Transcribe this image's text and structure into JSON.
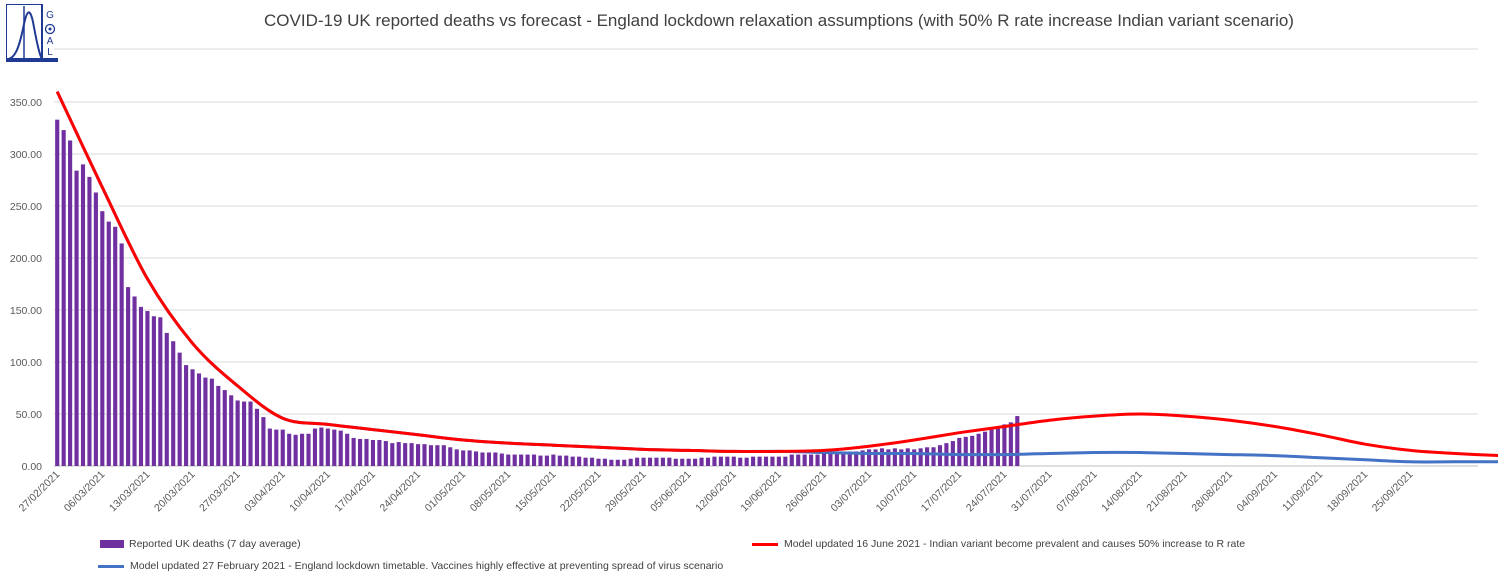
{
  "logo": {
    "text": "GOAL"
  },
  "chart_data": {
    "type": "bar",
    "title": "COVID-19 UK reported deaths vs forecast - England lockdown relaxation assumptions (with 50% R rate increase Indian variant scenario)",
    "xlabel": "",
    "ylabel": "",
    "x_start": "27/02/2021",
    "x_end": "02/10/2021",
    "ylim": [
      0,
      350
    ],
    "yticks": [
      "0.00",
      "50.00",
      "100.00",
      "150.00",
      "200.00",
      "250.00",
      "300.00",
      "350.00"
    ],
    "xticks": [
      "27/02/2021",
      "06/03/2021",
      "13/03/2021",
      "20/03/2021",
      "27/03/2021",
      "03/04/2021",
      "10/04/2021",
      "17/04/2021",
      "24/04/2021",
      "01/05/2021",
      "08/05/2021",
      "15/05/2021",
      "22/05/2021",
      "29/05/2021",
      "05/06/2021",
      "12/06/2021",
      "19/06/2021",
      "26/06/2021",
      "03/07/2021",
      "10/07/2021",
      "17/07/2021",
      "24/07/2021",
      "31/07/2021",
      "07/08/2021",
      "14/08/2021",
      "21/08/2021",
      "28/08/2021",
      "04/09/2021",
      "11/09/2021",
      "18/09/2021",
      "25/09/2021"
    ],
    "grid": true,
    "legend_position": "bottom",
    "series": [
      {
        "name": "Reported UK deaths (7 day average)",
        "kind": "bar",
        "color": "#7030a0",
        "values": [
          333,
          323,
          313,
          284,
          290,
          278,
          263,
          245,
          235,
          230,
          214,
          172,
          163,
          153,
          149,
          144,
          143,
          128,
          120,
          109,
          97,
          93,
          89,
          85,
          84,
          77,
          73,
          68,
          63,
          62,
          62,
          55,
          47,
          36,
          35,
          35,
          31,
          30,
          31,
          31,
          36,
          37,
          36,
          35,
          34,
          31,
          27,
          26,
          26,
          25,
          25,
          24,
          22,
          23,
          22,
          22,
          21,
          21,
          20,
          20,
          20,
          18,
          16,
          15,
          15,
          14,
          13,
          13,
          13,
          12,
          11,
          11,
          11,
          11,
          11,
          10,
          10,
          11,
          10,
          10,
          9,
          9,
          8,
          8,
          7,
          7,
          6,
          6,
          6,
          7,
          8,
          8,
          8,
          8,
          8,
          8,
          7,
          7,
          7,
          7,
          8,
          8,
          9,
          9,
          9,
          9,
          8,
          8,
          9,
          9,
          9,
          9,
          9,
          9,
          11,
          11,
          11,
          11,
          11,
          12,
          12,
          13,
          13,
          14,
          14,
          15,
          16,
          16,
          17,
          16,
          17,
          16,
          17,
          16,
          17,
          18,
          18,
          20,
          22,
          24,
          27,
          28,
          29,
          31,
          33,
          36,
          38,
          40,
          42,
          48
        ]
      },
      {
        "name": "Model updated 16 June 2021 - Indian variant become prevalent and causes 50% increase to R rate",
        "kind": "line",
        "color": "#ff0000",
        "points": [
          [
            0,
            360
          ],
          [
            7,
            268
          ],
          [
            14,
            180
          ],
          [
            21,
            118
          ],
          [
            28,
            77
          ],
          [
            35,
            46
          ],
          [
            42,
            40
          ],
          [
            49,
            35
          ],
          [
            56,
            30
          ],
          [
            63,
            25
          ],
          [
            70,
            22
          ],
          [
            77,
            20
          ],
          [
            84,
            18
          ],
          [
            91,
            16
          ],
          [
            98,
            15
          ],
          [
            105,
            14
          ],
          [
            112,
            14
          ],
          [
            119,
            15
          ],
          [
            126,
            19
          ],
          [
            133,
            25
          ],
          [
            140,
            32
          ],
          [
            147,
            38
          ],
          [
            154,
            44
          ],
          [
            161,
            48
          ],
          [
            168,
            50
          ],
          [
            175,
            48
          ],
          [
            182,
            44
          ],
          [
            189,
            38
          ],
          [
            196,
            30
          ],
          [
            203,
            21
          ],
          [
            210,
            15
          ],
          [
            217,
            12
          ],
          [
            224,
            10
          ],
          [
            231,
            9
          ],
          [
            238,
            8
          ],
          [
            245,
            7
          ],
          [
            252,
            6
          ],
          [
            259,
            6
          ]
        ]
      },
      {
        "name": "Model updated 27 February 2021 - England lockdown timetable. Vaccines highly effective at preventing spread of virus scenario",
        "kind": "line",
        "color": "#4472c4",
        "points": [
          [
            0,
            360
          ],
          [
            7,
            268
          ],
          [
            14,
            180
          ],
          [
            21,
            118
          ],
          [
            28,
            77
          ],
          [
            35,
            46
          ],
          [
            42,
            40
          ],
          [
            49,
            35
          ],
          [
            56,
            30
          ],
          [
            63,
            25
          ],
          [
            70,
            22
          ],
          [
            77,
            20
          ],
          [
            84,
            18
          ],
          [
            91,
            16
          ],
          [
            98,
            15
          ],
          [
            105,
            14
          ],
          [
            112,
            14
          ],
          [
            119,
            13
          ],
          [
            126,
            12
          ],
          [
            133,
            12
          ],
          [
            140,
            11
          ],
          [
            147,
            11
          ],
          [
            154,
            12
          ],
          [
            161,
            13
          ],
          [
            168,
            13
          ],
          [
            175,
            12
          ],
          [
            182,
            11
          ],
          [
            189,
            10
          ],
          [
            196,
            8
          ],
          [
            203,
            6
          ],
          [
            210,
            4
          ],
          [
            217,
            4
          ],
          [
            224,
            4
          ],
          [
            231,
            4
          ],
          [
            238,
            5
          ],
          [
            245,
            5
          ],
          [
            252,
            5
          ],
          [
            259,
            5
          ]
        ]
      }
    ]
  }
}
